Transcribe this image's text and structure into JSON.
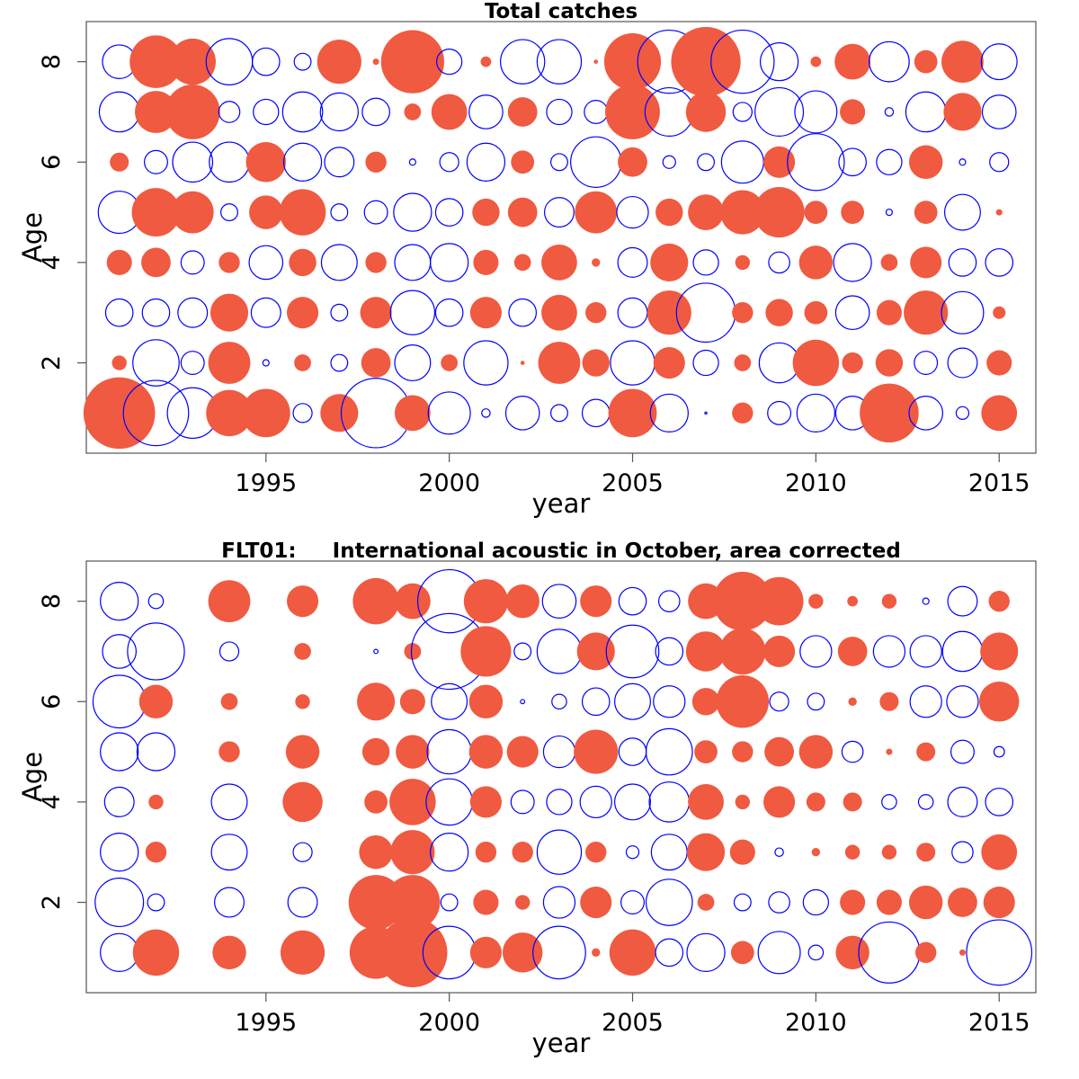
{
  "chart_data": [
    {
      "type": "scatter",
      "subtype": "bubble",
      "title": "Total catches",
      "xlabel": "year",
      "ylabel": "Age",
      "xlim": [
        1990.1,
        2016.0
      ],
      "ylim": [
        0.2,
        8.8
      ],
      "xticks": [
        1995,
        2000,
        2005,
        2010,
        2015
      ],
      "yticks": [
        2,
        4,
        6,
        8
      ],
      "grid": false,
      "legend": "none",
      "positive_color": "#F05A40",
      "negative_color": "#0000FF",
      "years": [
        1991,
        1992,
        1993,
        1994,
        1995,
        1996,
        1997,
        1998,
        1999,
        2000,
        2001,
        2002,
        2003,
        2004,
        2005,
        2006,
        2007,
        2008,
        2009,
        2010,
        2011,
        2012,
        2013,
        2014,
        2015
      ],
      "ages": [
        1,
        2,
        3,
        4,
        5,
        6,
        7,
        8
      ],
      "residuals_by_age": {
        "1": [
          3.4,
          3.1,
          2.4,
          2.2,
          2.3,
          0.9,
          1.8,
          3.3,
          1.7,
          2.0,
          0.4,
          1.6,
          0.8,
          1.3,
          2.3,
          1.8,
          0.1,
          1.0,
          1.1,
          1.8,
          1.6,
          2.8,
          1.6,
          0.6,
          1.7
        ],
        "2": [
          0.7,
          2.2,
          1.1,
          2.0,
          0.3,
          0.8,
          0.8,
          1.4,
          1.7,
          0.8,
          2.1,
          0.2,
          2.0,
          1.3,
          2.1,
          1.5,
          1.2,
          0.8,
          1.9,
          2.2,
          1.0,
          1.3,
          1.1,
          1.4,
          1.2
        ],
        "3": [
          1.3,
          1.3,
          1.4,
          1.8,
          1.4,
          1.5,
          0.8,
          1.5,
          2.1,
          1.3,
          1.5,
          1.3,
          1.7,
          1.0,
          1.4,
          2.1,
          2.8,
          1.0,
          1.3,
          1.1,
          1.6,
          1.2,
          2.1,
          2.0,
          0.6
        ],
        "4": [
          1.2,
          1.4,
          1.1,
          1.0,
          1.6,
          1.3,
          1.7,
          1.0,
          1.7,
          1.8,
          1.2,
          0.8,
          1.7,
          0.4,
          1.4,
          1.8,
          1.2,
          0.7,
          1.0,
          1.6,
          1.8,
          0.8,
          1.5,
          1.3,
          1.3
        ],
        "5": [
          2.0,
          2.3,
          2.0,
          0.8,
          1.6,
          2.2,
          0.8,
          1.1,
          1.8,
          1.3,
          1.3,
          1.4,
          1.4,
          2.0,
          1.5,
          1.3,
          1.7,
          2.1,
          2.4,
          1.1,
          1.1,
          0.3,
          1.1,
          1.7,
          0.3
        ],
        "6": [
          0.9,
          1.1,
          1.9,
          1.9,
          1.9,
          1.8,
          1.4,
          1.0,
          0.3,
          0.9,
          1.8,
          1.1,
          0.8,
          2.4,
          1.4,
          0.6,
          0.8,
          2.0,
          1.5,
          2.7,
          1.3,
          1.2,
          1.6,
          0.3,
          0.9
        ],
        "7": [
          1.9,
          2.0,
          2.6,
          1.0,
          1.2,
          1.9,
          1.8,
          1.3,
          0.8,
          1.7,
          1.6,
          1.4,
          1.2,
          1.1,
          2.6,
          2.3,
          1.9,
          0.9,
          2.3,
          2.0,
          1.2,
          0.4,
          1.9,
          1.8,
          1.6
        ],
        "8": [
          1.6,
          2.5,
          2.2,
          2.2,
          1.3,
          0.8,
          2.1,
          0.3,
          3.0,
          1.2,
          0.5,
          2.1,
          2.1,
          0.2,
          2.7,
          3.0,
          3.3,
          3.0,
          1.8,
          0.5,
          1.7,
          1.9,
          1.1,
          2.0,
          1.7
        ]
      },
      "sign_by_age": {
        "1": [
          "+",
          "-",
          "-",
          "+",
          "+",
          "-",
          "+",
          "-",
          "+",
          "-",
          "-",
          "-",
          "-",
          "-",
          "+",
          "-",
          "-",
          "+",
          "-",
          "-",
          "-",
          "+",
          "-",
          "-",
          "+"
        ],
        "2": [
          "+",
          "-",
          "-",
          "+",
          "-",
          "+",
          "-",
          "+",
          "-",
          "+",
          "-",
          "+",
          "+",
          "+",
          "-",
          "+",
          "-",
          "+",
          "-",
          "+",
          "+",
          "+",
          "-",
          "-",
          "+"
        ],
        "3": [
          "-",
          "-",
          "-",
          "+",
          "-",
          "+",
          "-",
          "+",
          "-",
          "-",
          "+",
          "-",
          "+",
          "+",
          "-",
          "+",
          "-",
          "+",
          "+",
          "+",
          "-",
          "+",
          "+",
          "-",
          "+"
        ],
        "4": [
          "+",
          "+",
          "-",
          "+",
          "-",
          "+",
          "-",
          "+",
          "-",
          "-",
          "+",
          "+",
          "+",
          "+",
          "-",
          "+",
          "-",
          "+",
          "-",
          "+",
          "-",
          "+",
          "+",
          "-",
          "-"
        ],
        "5": [
          "-",
          "+",
          "+",
          "-",
          "+",
          "+",
          "-",
          "-",
          "-",
          "-",
          "+",
          "+",
          "-",
          "+",
          "-",
          "+",
          "+",
          "+",
          "+",
          "+",
          "+",
          "-",
          "+",
          "-",
          "+"
        ],
        "6": [
          "+",
          "-",
          "-",
          "-",
          "+",
          "-",
          "-",
          "+",
          "-",
          "-",
          "-",
          "+",
          "-",
          "-",
          "+",
          "-",
          "-",
          "-",
          "+",
          "-",
          "-",
          "-",
          "+",
          "-",
          "-"
        ],
        "7": [
          "-",
          "+",
          "+",
          "-",
          "-",
          "-",
          "-",
          "-",
          "+",
          "+",
          "-",
          "+",
          "-",
          "-",
          "+",
          "-",
          "+",
          "-",
          "-",
          "-",
          "+",
          "-",
          "-",
          "+",
          "-"
        ],
        "8": [
          "-",
          "+",
          "+",
          "-",
          "-",
          "-",
          "+",
          "+",
          "+",
          "-",
          "+",
          "-",
          "-",
          "+",
          "+",
          "-",
          "+",
          "-",
          "-",
          "+",
          "+",
          "-",
          "+",
          "+",
          "-"
        ]
      }
    },
    {
      "type": "scatter",
      "subtype": "bubble",
      "title": "FLT01:     International acoustic in October, area corrected",
      "xlabel": "year",
      "ylabel": "Age",
      "xlim": [
        1990.1,
        2016.0
      ],
      "ylim": [
        0.2,
        8.8
      ],
      "xticks": [
        1995,
        2000,
        2005,
        2010,
        2015
      ],
      "yticks": [
        2,
        4,
        6,
        8
      ],
      "grid": false,
      "legend": "none",
      "positive_color": "#F05A40",
      "negative_color": "#0000FF",
      "years": [
        1991,
        1992,
        1994,
        1996,
        1998,
        1999,
        2000,
        2001,
        2002,
        2003,
        2004,
        2005,
        2006,
        2007,
        2008,
        2009,
        2010,
        2011,
        2012,
        2013,
        2014,
        2015
      ],
      "ages": [
        1,
        2,
        3,
        4,
        5,
        6,
        7,
        8
      ],
      "residuals_by_age": {
        "1": [
          1.8,
          2.2,
          1.6,
          2.1,
          2.5,
          3.3,
          2.5,
          1.5,
          1.9,
          2.5,
          0.4,
          2.2,
          1.3,
          1.8,
          1.1,
          2.0,
          0.7,
          1.6,
          2.9,
          1.0,
          0.3,
          3.1
        ],
        "2": [
          2.3,
          0.8,
          1.4,
          1.4,
          2.6,
          2.6,
          0.8,
          1.2,
          0.7,
          1.5,
          1.5,
          1.1,
          2.2,
          0.8,
          0.8,
          1.0,
          1.2,
          1.2,
          1.2,
          1.6,
          1.4,
          1.5
        ],
        "3": [
          1.8,
          1.0,
          1.7,
          0.9,
          1.6,
          2.1,
          1.8,
          1.0,
          1.0,
          2.1,
          1.0,
          0.6,
          1.7,
          1.8,
          1.2,
          0.4,
          0.4,
          0.7,
          0.7,
          0.9,
          1.0,
          1.7
        ],
        "4": [
          1.4,
          0.7,
          1.7,
          1.9,
          1.1,
          2.2,
          2.2,
          1.5,
          1.1,
          1.2,
          1.5,
          1.7,
          1.9,
          1.7,
          0.7,
          1.5,
          0.9,
          0.9,
          0.7,
          0.7,
          1.4,
          1.3
        ],
        "5": [
          1.8,
          1.8,
          1.0,
          1.6,
          1.3,
          1.6,
          2.1,
          1.6,
          1.5,
          1.5,
          2.1,
          1.3,
          2.2,
          1.1,
          1.0,
          1.4,
          1.6,
          1.0,
          0.3,
          0.9,
          1.1,
          0.5
        ],
        "6": [
          2.5,
          1.6,
          0.8,
          0.7,
          1.8,
          1.2,
          1.7,
          1.6,
          0.2,
          0.7,
          1.3,
          1.7,
          1.5,
          1.3,
          2.5,
          0.9,
          0.8,
          0.4,
          0.9,
          1.5,
          1.5,
          1.9
        ],
        "7": [
          1.6,
          2.7,
          0.9,
          0.8,
          0.2,
          0.8,
          3.6,
          2.4,
          0.8,
          2.1,
          1.8,
          2.5,
          1.3,
          1.9,
          2.2,
          1.5,
          1.5,
          1.4,
          1.5,
          1.5,
          1.9,
          1.8
        ],
        "8": [
          1.8,
          0.7,
          2.0,
          1.5,
          2.2,
          1.7,
          3.0,
          2.1,
          1.6,
          1.6,
          1.5,
          1.3,
          1.0,
          1.7,
          2.8,
          2.3,
          0.7,
          0.5,
          0.7,
          0.3,
          1.4,
          1.0
        ]
      },
      "sign_by_age": {
        "1": [
          "-",
          "+",
          "+",
          "+",
          "+",
          "+",
          "-",
          "+",
          "+",
          "-",
          "+",
          "+",
          "-",
          "-",
          "+",
          "-",
          "-",
          "+",
          "-",
          "+",
          "+",
          "-"
        ],
        "2": [
          "-",
          "-",
          "-",
          "-",
          "+",
          "+",
          "-",
          "+",
          "+",
          "-",
          "+",
          "-",
          "-",
          "+",
          "-",
          "-",
          "-",
          "+",
          "+",
          "+",
          "+",
          "+"
        ],
        "3": [
          "-",
          "+",
          "-",
          "-",
          "+",
          "+",
          "-",
          "+",
          "+",
          "-",
          "+",
          "-",
          "-",
          "+",
          "+",
          "-",
          "+",
          "+",
          "+",
          "+",
          "-",
          "+"
        ],
        "4": [
          "-",
          "+",
          "-",
          "+",
          "+",
          "+",
          "-",
          "+",
          "-",
          "-",
          "-",
          "-",
          "-",
          "+",
          "+",
          "+",
          "+",
          "+",
          "-",
          "-",
          "-",
          "-"
        ],
        "5": [
          "-",
          "-",
          "+",
          "+",
          "+",
          "+",
          "-",
          "+",
          "+",
          "-",
          "+",
          "-",
          "-",
          "+",
          "+",
          "+",
          "+",
          "-",
          "+",
          "+",
          "-",
          "-"
        ],
        "6": [
          "-",
          "+",
          "+",
          "+",
          "+",
          "+",
          "-",
          "+",
          "-",
          "-",
          "-",
          "-",
          "-",
          "+",
          "+",
          "-",
          "-",
          "+",
          "+",
          "-",
          "-",
          "+"
        ],
        "7": [
          "-",
          "-",
          "-",
          "+",
          "-",
          "+",
          "-",
          "+",
          "-",
          "-",
          "+",
          "-",
          "-",
          "+",
          "+",
          "+",
          "-",
          "+",
          "-",
          "-",
          "-",
          "+"
        ],
        "8": [
          "-",
          "-",
          "+",
          "+",
          "+",
          "+",
          "-",
          "+",
          "+",
          "-",
          "+",
          "-",
          "-",
          "+",
          "+",
          "+",
          "+",
          "+",
          "+",
          "-",
          "-",
          "+"
        ]
      }
    }
  ]
}
